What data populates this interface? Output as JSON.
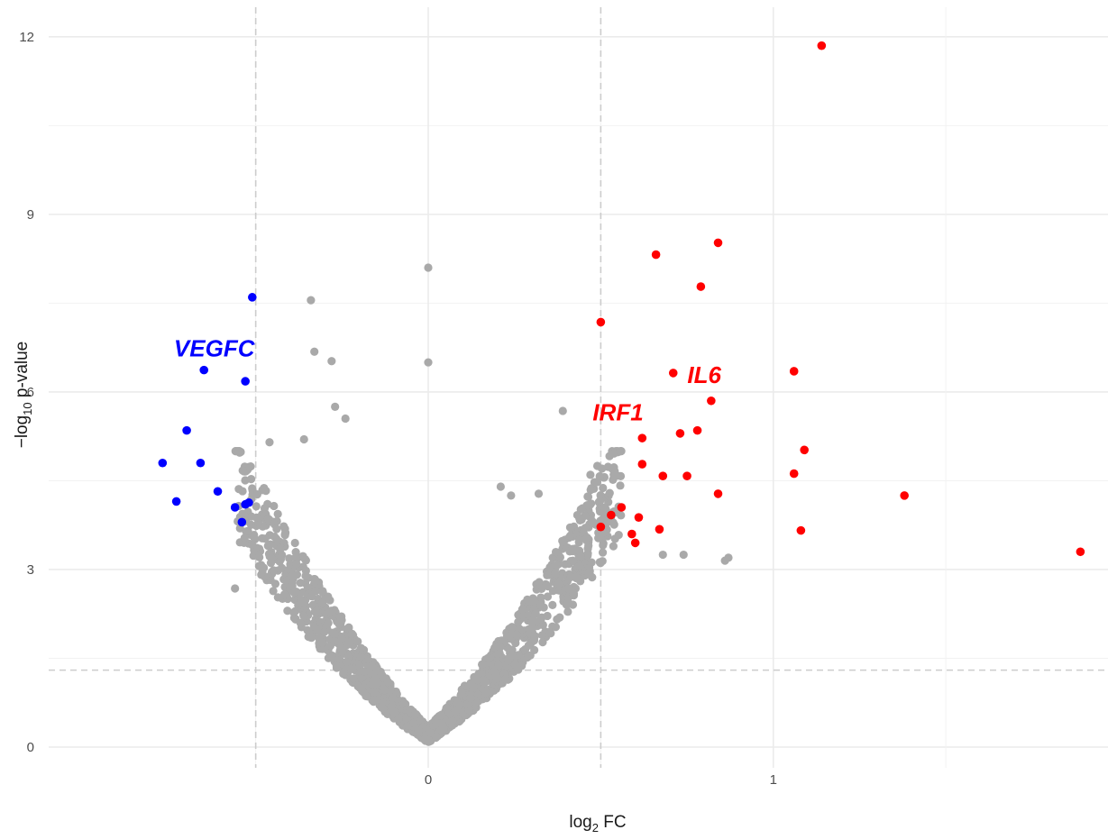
{
  "chart_data": {
    "type": "scatter",
    "title": "",
    "xlabel_parts": [
      "log",
      "2",
      " FC"
    ],
    "ylabel_parts": [
      "−log",
      "10",
      " p-value"
    ],
    "xlim": [
      -1.1,
      1.97
    ],
    "ylim": [
      -0.35,
      12.5
    ],
    "x_ticks": [
      0,
      1
    ],
    "y_ticks": [
      0,
      3,
      6,
      9,
      12
    ],
    "x_tick_labels": [
      "0",
      "1"
    ],
    "y_tick_labels": [
      "0",
      "3",
      "6",
      "9",
      "12"
    ],
    "grid": true,
    "thresholds": {
      "fc_lines": [
        -0.5,
        0.5
      ],
      "p_line": 1.3
    },
    "colors": {
      "up": "#ff0000",
      "down": "#0000ff",
      "ns": "#a9a9a9",
      "grid": "#ebebeb",
      "threshold": "#cccccc"
    },
    "series": [
      {
        "group": "up",
        "points": [
          [
            1.14,
            11.85
          ],
          [
            0.84,
            8.52
          ],
          [
            0.66,
            8.32
          ],
          [
            0.79,
            7.78
          ],
          [
            0.5,
            7.18
          ],
          [
            0.71,
            6.32
          ],
          [
            1.06,
            6.35
          ],
          [
            0.82,
            5.85
          ],
          [
            0.62,
            5.22
          ],
          [
            0.73,
            5.3
          ],
          [
            0.78,
            5.35
          ],
          [
            1.09,
            5.02
          ],
          [
            0.62,
            4.78
          ],
          [
            0.68,
            4.58
          ],
          [
            0.75,
            4.58
          ],
          [
            1.06,
            4.62
          ],
          [
            0.84,
            4.28
          ],
          [
            1.38,
            4.25
          ],
          [
            0.56,
            4.05
          ],
          [
            0.53,
            3.92
          ],
          [
            0.61,
            3.88
          ],
          [
            0.5,
            3.72
          ],
          [
            0.67,
            3.68
          ],
          [
            0.59,
            3.6
          ],
          [
            0.6,
            3.45
          ],
          [
            1.08,
            3.66
          ],
          [
            1.89,
            3.3
          ]
        ]
      },
      {
        "group": "down",
        "points": [
          [
            -0.51,
            7.6
          ],
          [
            -0.65,
            6.37
          ],
          [
            -0.53,
            6.18
          ],
          [
            -0.7,
            5.35
          ],
          [
            -0.77,
            4.8
          ],
          [
            -0.66,
            4.8
          ],
          [
            -0.61,
            4.32
          ],
          [
            -0.73,
            4.15
          ],
          [
            -0.52,
            4.13
          ],
          [
            -0.53,
            4.1
          ],
          [
            -0.56,
            4.05
          ],
          [
            -0.54,
            3.8
          ]
        ]
      }
    ],
    "labels": [
      {
        "text": "VEGFC",
        "x": -0.62,
        "y": 6.6,
        "group": "down"
      },
      {
        "text": "IL6",
        "x": 0.8,
        "y": 6.15,
        "group": "up"
      },
      {
        "text": "IRF1",
        "x": 0.55,
        "y": 5.52,
        "group": "up"
      }
    ]
  }
}
